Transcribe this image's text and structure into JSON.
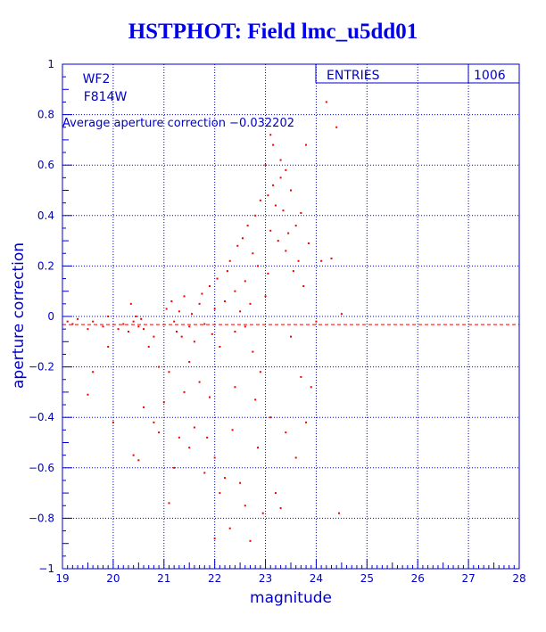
{
  "chart_data": {
    "type": "scatter",
    "title": "HSTPHOT: Field lmc_u5dd01",
    "xlabel": "magnitude",
    "ylabel": "aperture correction",
    "xlim": [
      19,
      28
    ],
    "ylim": [
      -1,
      1
    ],
    "x_ticks": [
      19,
      20,
      21,
      22,
      23,
      24,
      25,
      26,
      27,
      28
    ],
    "y_ticks": [
      -1,
      -0.8,
      -0.6,
      -0.4,
      -0.2,
      0,
      0.2,
      0.4,
      0.6,
      0.8,
      1
    ],
    "x_tick_labels": [
      "19",
      "20",
      "21",
      "22",
      "23",
      "24",
      "25",
      "26",
      "27",
      "28"
    ],
    "y_tick_labels": [
      "−1",
      "−0.8",
      "−0.6",
      "−0.4",
      "−0.2",
      "0",
      "0.2",
      "0.4",
      "0.6",
      "0.8",
      "1"
    ],
    "grid": true,
    "annotations": {
      "camera": "WF2",
      "filter": "F814W",
      "average_text": "Average aperture correction −0.032202",
      "average_value": -0.032202
    },
    "stats_box": {
      "label": "ENTRIES",
      "value": "1006"
    },
    "colors": {
      "points": "#ee0000",
      "axes": "#0000cc",
      "title": "#0000ee",
      "average_line": "#ee0000"
    },
    "series": [
      {
        "points": [
          [
            19.1,
            -0.02
          ],
          [
            19.2,
            -0.03
          ],
          [
            19.3,
            -0.01
          ],
          [
            19.5,
            -0.05
          ],
          [
            19.6,
            -0.02
          ],
          [
            19.8,
            -0.04
          ],
          [
            19.9,
            0.0
          ],
          [
            19.5,
            -0.31
          ],
          [
            19.6,
            -0.22
          ],
          [
            19.9,
            -0.12
          ],
          [
            20.0,
            -0.42
          ],
          [
            20.1,
            -0.05
          ],
          [
            20.2,
            -0.03
          ],
          [
            20.3,
            -0.06
          ],
          [
            20.4,
            -0.02
          ],
          [
            20.45,
            0.0
          ],
          [
            20.5,
            -0.04
          ],
          [
            20.55,
            -0.01
          ],
          [
            20.6,
            -0.05
          ],
          [
            20.35,
            0.05
          ],
          [
            20.4,
            -0.55
          ],
          [
            20.5,
            -0.57
          ],
          [
            20.6,
            -0.36
          ],
          [
            20.7,
            -0.12
          ],
          [
            20.8,
            -0.08
          ],
          [
            20.9,
            -0.2
          ],
          [
            20.8,
            -0.42
          ],
          [
            20.9,
            -0.46
          ],
          [
            21.0,
            -0.34
          ],
          [
            21.1,
            -0.22
          ],
          [
            21.05,
            0.03
          ],
          [
            21.15,
            0.06
          ],
          [
            21.2,
            -0.02
          ],
          [
            21.25,
            -0.06
          ],
          [
            21.3,
            0.02
          ],
          [
            21.35,
            -0.08
          ],
          [
            21.4,
            0.08
          ],
          [
            21.5,
            -0.04
          ],
          [
            21.55,
            0.01
          ],
          [
            21.6,
            -0.1
          ],
          [
            21.1,
            -0.74
          ],
          [
            21.2,
            -0.6
          ],
          [
            21.3,
            -0.48
          ],
          [
            21.4,
            -0.3
          ],
          [
            21.5,
            -0.18
          ],
          [
            21.5,
            -0.52
          ],
          [
            21.6,
            -0.44
          ],
          [
            21.7,
            -0.26
          ],
          [
            21.8,
            -0.62
          ],
          [
            21.85,
            -0.48
          ],
          [
            21.7,
            0.05
          ],
          [
            21.75,
            0.09
          ],
          [
            21.8,
            -0.03
          ],
          [
            21.9,
            0.12
          ],
          [
            21.95,
            -0.07
          ],
          [
            22.0,
            0.03
          ],
          [
            22.05,
            0.15
          ],
          [
            22.1,
            -0.12
          ],
          [
            22.2,
            0.06
          ],
          [
            22.25,
            0.18
          ],
          [
            21.9,
            -0.32
          ],
          [
            22.0,
            -0.56
          ],
          [
            22.0,
            -0.88
          ],
          [
            22.1,
            -0.7
          ],
          [
            22.2,
            -0.64
          ],
          [
            22.3,
            -0.84
          ],
          [
            22.35,
            -0.45
          ],
          [
            22.4,
            -0.28
          ],
          [
            22.5,
            -0.66
          ],
          [
            22.6,
            -0.75
          ],
          [
            22.3,
            0.22
          ],
          [
            22.4,
            0.1
          ],
          [
            22.45,
            0.28
          ],
          [
            22.5,
            0.02
          ],
          [
            22.55,
            0.31
          ],
          [
            22.6,
            0.14
          ],
          [
            22.65,
            0.36
          ],
          [
            22.7,
            0.05
          ],
          [
            22.75,
            0.25
          ],
          [
            22.8,
            0.4
          ],
          [
            22.7,
            -0.89
          ],
          [
            22.75,
            -0.14
          ],
          [
            22.8,
            -0.33
          ],
          [
            22.85,
            -0.52
          ],
          [
            22.9,
            -0.22
          ],
          [
            22.95,
            -0.78
          ],
          [
            23.0,
            0.08
          ],
          [
            23.05,
            0.17
          ],
          [
            23.1,
            0.34
          ],
          [
            23.15,
            0.52
          ],
          [
            23.0,
            0.6
          ],
          [
            23.05,
            0.48
          ],
          [
            23.1,
            0.72
          ],
          [
            23.15,
            0.68
          ],
          [
            23.2,
            0.44
          ],
          [
            23.25,
            0.3
          ],
          [
            23.3,
            0.55
          ],
          [
            23.35,
            0.42
          ],
          [
            23.4,
            0.26
          ],
          [
            23.45,
            0.33
          ],
          [
            23.1,
            -0.4
          ],
          [
            23.2,
            -0.7
          ],
          [
            23.3,
            -0.76
          ],
          [
            23.4,
            -0.46
          ],
          [
            23.5,
            -0.08
          ],
          [
            23.55,
            0.18
          ],
          [
            23.6,
            0.36
          ],
          [
            23.65,
            0.22
          ],
          [
            23.7,
            0.41
          ],
          [
            23.75,
            0.12
          ],
          [
            23.8,
            0.68
          ],
          [
            23.85,
            0.29
          ],
          [
            23.9,
            -0.28
          ],
          [
            24.0,
            -0.02
          ],
          [
            24.1,
            0.22
          ],
          [
            24.2,
            0.85
          ],
          [
            24.3,
            0.23
          ],
          [
            24.4,
            0.75
          ],
          [
            24.45,
            -0.78
          ],
          [
            24.5,
            0.01
          ],
          [
            23.6,
            -0.56
          ],
          [
            23.7,
            -0.24
          ],
          [
            23.8,
            -0.42
          ],
          [
            23.4,
            0.58
          ],
          [
            23.5,
            0.5
          ],
          [
            23.3,
            0.62
          ],
          [
            22.9,
            0.46
          ],
          [
            22.85,
            0.2
          ],
          [
            22.6,
            -0.04
          ],
          [
            22.4,
            -0.06
          ]
        ]
      }
    ]
  }
}
